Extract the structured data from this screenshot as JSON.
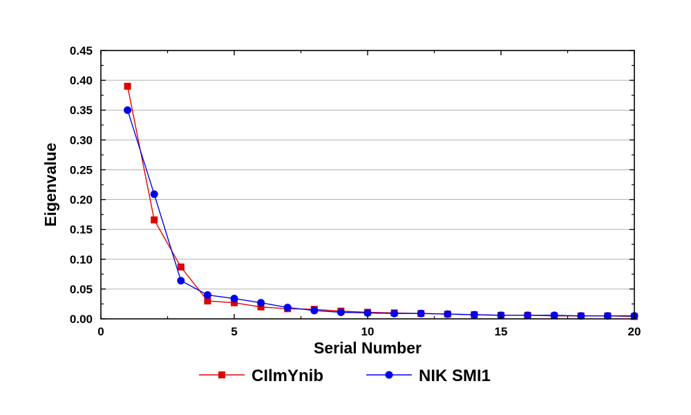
{
  "chart_data": {
    "type": "line",
    "xlabel": "Serial Number",
    "ylabel": "Eigenvalue",
    "xlim": [
      0,
      20
    ],
    "ylim": [
      0,
      0.45
    ],
    "xticks": [
      0,
      5,
      10,
      15,
      20
    ],
    "yticks": [
      0.0,
      0.05,
      0.1,
      0.15,
      0.2,
      0.25,
      0.3,
      0.35,
      0.4,
      0.45
    ],
    "ytick_labels": [
      "0.00",
      "0.05",
      "0.10",
      "0.15",
      "0.20",
      "0.25",
      "0.30",
      "0.35",
      "0.40",
      "0.45"
    ],
    "xtick_labels": [
      "0",
      "5",
      "10",
      "15",
      "20"
    ],
    "grid": "horizontal",
    "legend_position": "bottom",
    "series": [
      {
        "name": "CIlmYnib",
        "color": "#e00000",
        "marker": "square",
        "x": [
          1,
          2,
          3,
          4,
          5,
          6,
          7,
          8,
          9,
          10,
          11,
          12,
          13,
          14,
          15,
          16,
          17,
          18,
          19,
          20
        ],
        "values": [
          0.39,
          0.166,
          0.087,
          0.03,
          0.027,
          0.02,
          0.017,
          0.016,
          0.013,
          0.011,
          0.01,
          0.009,
          0.008,
          0.007,
          0.006,
          0.006,
          0.005,
          0.005,
          0.005,
          0.004
        ]
      },
      {
        "name": "NIK SMI1",
        "color": "#0000ee",
        "marker": "circle",
        "x": [
          1,
          2,
          3,
          4,
          5,
          6,
          7,
          8,
          9,
          10,
          11,
          12,
          13,
          14,
          15,
          16,
          17,
          18,
          19,
          20
        ],
        "values": [
          0.35,
          0.209,
          0.064,
          0.04,
          0.034,
          0.027,
          0.019,
          0.014,
          0.011,
          0.01,
          0.009,
          0.009,
          0.008,
          0.007,
          0.006,
          0.006,
          0.006,
          0.005,
          0.005,
          0.005
        ]
      }
    ]
  }
}
